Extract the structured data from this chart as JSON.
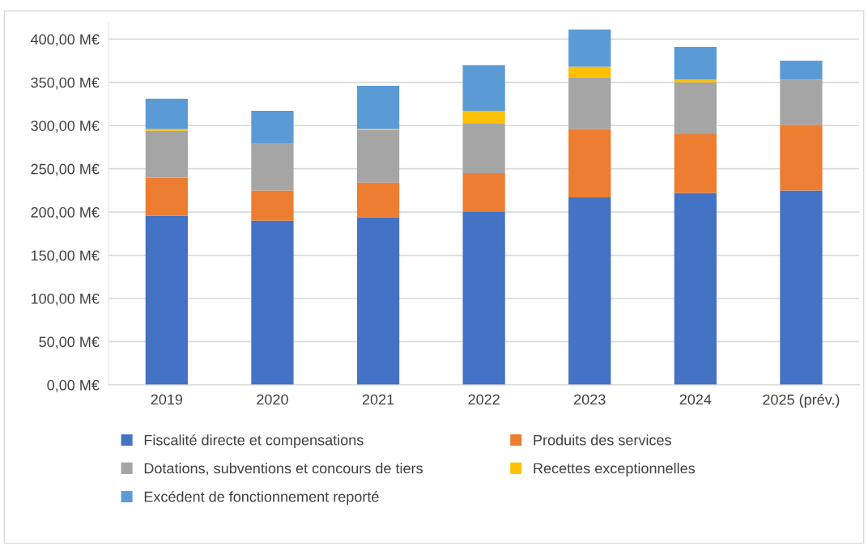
{
  "chart_data": {
    "type": "bar",
    "stacked": true,
    "categories": [
      "2019",
      "2020",
      "2021",
      "2022",
      "2023",
      "2024",
      "2025 (prév.)"
    ],
    "series": [
      {
        "name": "Fiscalité directe et compensations",
        "color": "#4472c4",
        "values": [
          196,
          190,
          194,
          200,
          217,
          222,
          225
        ]
      },
      {
        "name": "Produits des services",
        "color": "#ed7d31",
        "values": [
          44,
          35,
          40,
          45,
          79,
          68,
          76
        ]
      },
      {
        "name": "Dotations, subventions et concours de tiers",
        "color": "#a5a5a5",
        "values": [
          54,
          54,
          61,
          57,
          60,
          60,
          52
        ]
      },
      {
        "name": "Recettes exceptionnelles",
        "color": "#ffc000",
        "values": [
          2,
          0,
          1,
          15,
          12,
          3,
          0
        ]
      },
      {
        "name": "Excédent de fonctionnement reporté",
        "color": "#5b9bd5",
        "values": [
          35,
          38,
          50,
          53,
          43,
          38,
          22
        ]
      }
    ],
    "ylim": [
      0,
      420
    ],
    "yticks": [
      {
        "value": 0,
        "label": "0,00 M€"
      },
      {
        "value": 50,
        "label": "50,00 M€"
      },
      {
        "value": 100,
        "label": "100,00 M€"
      },
      {
        "value": 150,
        "label": "150,00 M€"
      },
      {
        "value": 200,
        "label": "200,00 M€"
      },
      {
        "value": 250,
        "label": "250,00 M€"
      },
      {
        "value": 300,
        "label": "300,00 M€"
      },
      {
        "value": 350,
        "label": "350,00 M€"
      },
      {
        "value": 400,
        "label": "400,00 M€"
      }
    ],
    "grid": "y",
    "legend": "bottom"
  }
}
